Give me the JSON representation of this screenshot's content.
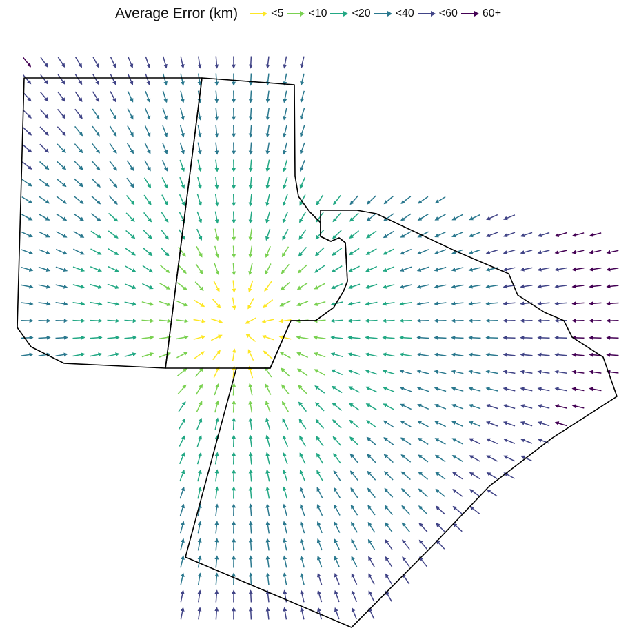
{
  "legend": {
    "title": "Average Error (km)",
    "items": [
      {
        "label": "<5",
        "color": "#FDE725"
      },
      {
        "label": "<10",
        "color": "#7AD151"
      },
      {
        "label": "<20",
        "color": "#22A884"
      },
      {
        "label": "<40",
        "color": "#2A788E"
      },
      {
        "label": "<60",
        "color": "#414487"
      },
      {
        "label": "60+",
        "color": "#440154"
      }
    ]
  },
  "map": {
    "boundary_color": "#000000",
    "arrow_field": "error vectors converging toward a central point near the shared region boundary"
  }
}
